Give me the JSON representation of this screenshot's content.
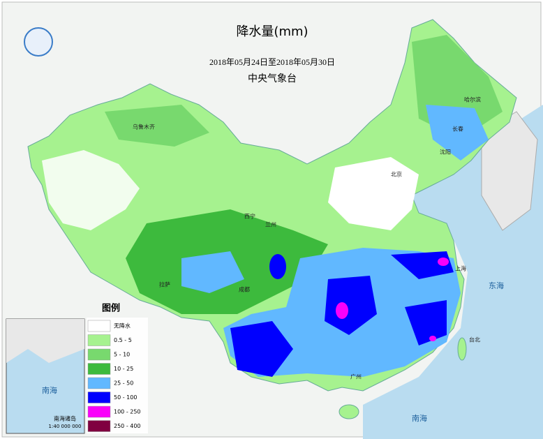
{
  "map": {
    "title": "降水量(mm)",
    "period": "2018年05月24日至2018年05月30日",
    "source": "中央气象台",
    "legend": {
      "title": "图例",
      "items": [
        {
          "label": "无降水",
          "color": "#ffffff"
        },
        {
          "label": "0.5 - 5",
          "color": "#a6f28f"
        },
        {
          "label": "5 - 10",
          "color": "#78d96e"
        },
        {
          "label": "10 - 25",
          "color": "#3dba3d"
        },
        {
          "label": "25 - 50",
          "color": "#61b8ff"
        },
        {
          "label": "50 - 100",
          "color": "#0000fe"
        },
        {
          "label": "100 - 250",
          "color": "#fa00fa"
        },
        {
          "label": "250 - 400",
          "color": "#800040"
        }
      ]
    },
    "places": [
      "东海",
      "南海",
      "上海",
      "台北",
      "乌鲁木齐",
      "拉萨",
      "西宁",
      "兰州",
      "成都",
      "北京",
      "哈尔滨",
      "长春",
      "沈阳",
      "广州"
    ],
    "inset": {
      "sea": "南海",
      "title": "南海诸岛",
      "scale": "1:40 000 000"
    }
  }
}
